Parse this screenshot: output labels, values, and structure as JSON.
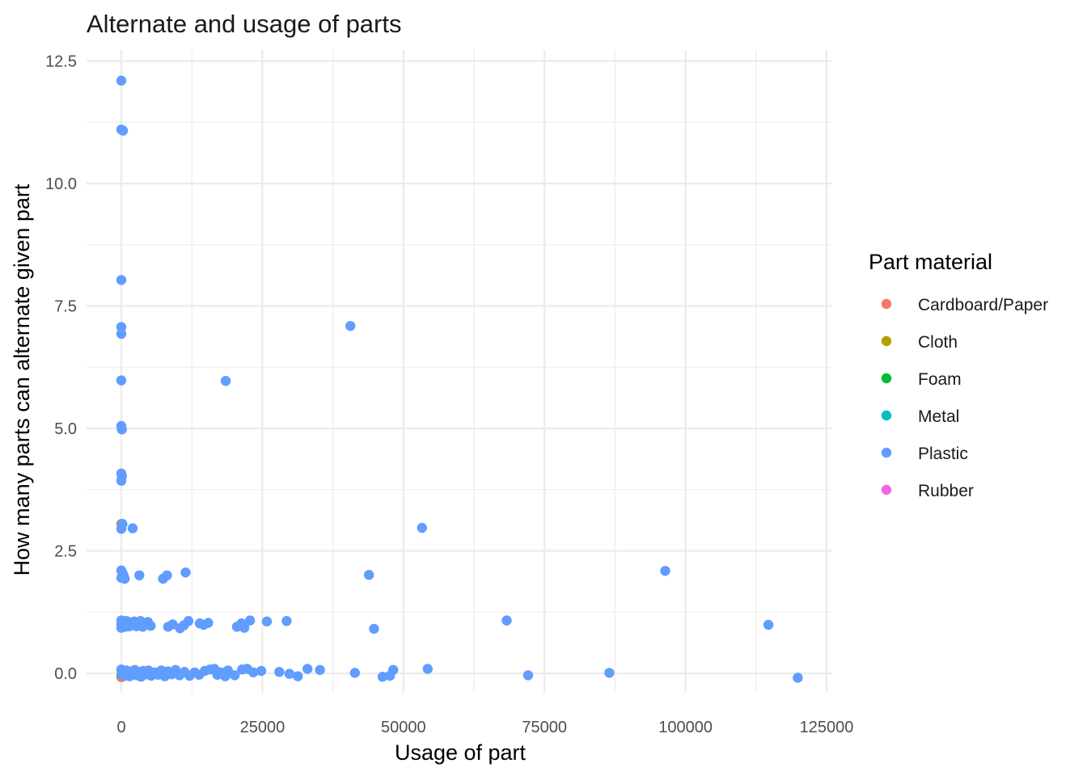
{
  "chart_data": {
    "type": "scatter",
    "title": "Alternate and usage of parts",
    "xlabel": "Usage of part",
    "ylabel": "How many parts can alternate given part",
    "xlim": [
      -6000,
      126000
    ],
    "ylim": [
      -0.2,
      12.5
    ],
    "x_ticks": [
      0,
      25000,
      50000,
      75000,
      100000,
      125000
    ],
    "x_tick_labels": [
      "0",
      "25000",
      "50000",
      "75000",
      "100000",
      "125000"
    ],
    "y_ticks": [
      0,
      2.5,
      5,
      7.5,
      10,
      12.5
    ],
    "y_tick_labels": [
      "0.0",
      "2.5",
      "5.0",
      "7.5",
      "10.0",
      "12.5"
    ],
    "grid": true,
    "legend": {
      "title": "Part material",
      "placement": "right",
      "entries": [
        {
          "name": "Cardboard/Paper",
          "color": "#F8766D"
        },
        {
          "name": "Cloth",
          "color": "#B79F00"
        },
        {
          "name": "Foam",
          "color": "#00BA38"
        },
        {
          "name": "Metal",
          "color": "#00BFC4"
        },
        {
          "name": "Plastic",
          "color": "#619CFF"
        },
        {
          "name": "Rubber",
          "color": "#F564E3"
        }
      ]
    },
    "series": [
      {
        "name": "Cardboard/Paper",
        "color": "#F8766D",
        "points": [
          [
            0,
            -0.08
          ],
          [
            80,
            0.02
          ],
          [
            150,
            1.0
          ]
        ]
      },
      {
        "name": "Cloth",
        "color": "#B79F00",
        "points": [
          [
            0,
            3.05
          ],
          [
            40,
            0.05
          ],
          [
            100,
            1.02
          ]
        ]
      },
      {
        "name": "Foam",
        "color": "#00BA38",
        "points": [
          [
            60,
            -0.03
          ]
        ]
      },
      {
        "name": "Metal",
        "color": "#00BFC4",
        "points": [
          [
            120,
            0.04
          ]
        ]
      },
      {
        "name": "Plastic",
        "color": "#619CFF",
        "points": [
          [
            0,
            12.1
          ],
          [
            0,
            11.1
          ],
          [
            300,
            11.08
          ],
          [
            0,
            8.03
          ],
          [
            0,
            7.07
          ],
          [
            0,
            6.93
          ],
          [
            0,
            5.98
          ],
          [
            0,
            5.05
          ],
          [
            100,
            4.98
          ],
          [
            0,
            4.08
          ],
          [
            100,
            4.02
          ],
          [
            0,
            3.93
          ],
          [
            200,
            3.05
          ],
          [
            0,
            2.95
          ],
          [
            2000,
            2.96
          ],
          [
            0,
            2.1
          ],
          [
            200,
            2.05
          ],
          [
            400,
            2.0
          ],
          [
            0,
            1.95
          ],
          [
            600,
            1.93
          ],
          [
            3200,
            2.0
          ],
          [
            7400,
            1.93
          ],
          [
            8100,
            2.0
          ],
          [
            11400,
            2.06
          ],
          [
            0,
            1.08
          ],
          [
            0,
            1.0
          ],
          [
            0,
            0.93
          ],
          [
            200,
            1.05
          ],
          [
            300,
            0.97
          ],
          [
            500,
            1.02
          ],
          [
            700,
            0.95
          ],
          [
            900,
            1.07
          ],
          [
            1100,
            1.0
          ],
          [
            1400,
            0.96
          ],
          [
            1700,
            1.04
          ],
          [
            2000,
            0.99
          ],
          [
            2300,
            1.06
          ],
          [
            2700,
            0.96
          ],
          [
            3000,
            1.02
          ],
          [
            3400,
            1.07
          ],
          [
            3800,
            0.95
          ],
          [
            4200,
            1.0
          ],
          [
            4700,
            1.05
          ],
          [
            5200,
            0.97
          ],
          [
            8300,
            0.95
          ],
          [
            9100,
            1.0
          ],
          [
            10400,
            0.92
          ],
          [
            11100,
            0.98
          ],
          [
            11900,
            1.07
          ],
          [
            13900,
            1.02
          ],
          [
            14600,
            0.99
          ],
          [
            15400,
            1.03
          ],
          [
            20500,
            0.95
          ],
          [
            21300,
            1.02
          ],
          [
            21800,
            0.93
          ],
          [
            22800,
            1.08
          ],
          [
            25800,
            1.06
          ],
          [
            29300,
            1.07
          ],
          [
            44800,
            0.91
          ],
          [
            68300,
            1.08
          ],
          [
            114700,
            0.99
          ],
          [
            0,
            0.08
          ],
          [
            100,
            0.03
          ],
          [
            200,
            -0.04
          ],
          [
            300,
            0.05
          ],
          [
            500,
            0.0
          ],
          [
            700,
            -0.05
          ],
          [
            900,
            0.06
          ],
          [
            1200,
            0.0
          ],
          [
            1500,
            -0.06
          ],
          [
            1800,
            0.04
          ],
          [
            2100,
            -0.02
          ],
          [
            2400,
            0.07
          ],
          [
            2800,
            -0.04
          ],
          [
            3100,
            0.03
          ],
          [
            3500,
            -0.07
          ],
          [
            3900,
            0.05
          ],
          [
            4300,
            -0.02
          ],
          [
            4800,
            0.06
          ],
          [
            5300,
            -0.05
          ],
          [
            5900,
            0.02
          ],
          [
            6500,
            -0.03
          ],
          [
            7100,
            0.06
          ],
          [
            7700,
            -0.06
          ],
          [
            8300,
            0.04
          ],
          [
            8900,
            -0.02
          ],
          [
            9600,
            0.07
          ],
          [
            10300,
            -0.04
          ],
          [
            11200,
            0.03
          ],
          [
            12100,
            -0.05
          ],
          [
            13000,
            0.02
          ],
          [
            13800,
            -0.03
          ],
          [
            14800,
            0.05
          ],
          [
            15700,
            0.08
          ],
          [
            16500,
            0.09
          ],
          [
            17000,
            -0.03
          ],
          [
            17600,
            0.02
          ],
          [
            18400,
            -0.06
          ],
          [
            18900,
            0.06
          ],
          [
            20100,
            -0.04
          ],
          [
            21400,
            0.08
          ],
          [
            22300,
            0.09
          ],
          [
            23400,
            0.02
          ],
          [
            24800,
            0.05
          ],
          [
            28000,
            0.03
          ],
          [
            29800,
            -0.01
          ],
          [
            31300,
            -0.06
          ],
          [
            33000,
            0.09
          ],
          [
            35200,
            0.07
          ],
          [
            41400,
            0.01
          ],
          [
            46300,
            -0.07
          ],
          [
            47600,
            -0.05
          ],
          [
            48200,
            0.07
          ],
          [
            54300,
            0.09
          ],
          [
            72100,
            -0.04
          ],
          [
            86500,
            0.01
          ],
          [
            119900,
            -0.09
          ],
          [
            40600,
            7.09
          ],
          [
            18500,
            5.97
          ],
          [
            53300,
            2.97
          ],
          [
            43900,
            2.01
          ],
          [
            96400,
            2.09
          ]
        ]
      }
    ]
  }
}
